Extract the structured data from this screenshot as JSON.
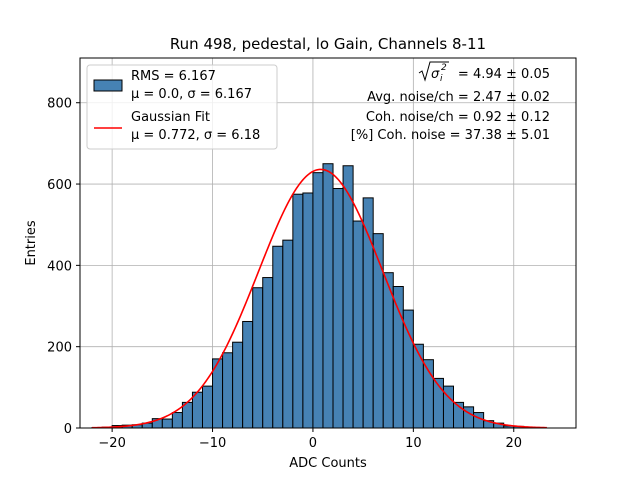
{
  "chart_data": {
    "type": "bar",
    "title": "Run 498, pedestal, lo Gain, Channels 8-11",
    "xlabel": "ADC Counts",
    "ylabel": "Entries",
    "xlim": [
      -23.2,
      26.2
    ],
    "ylim": [
      0,
      910
    ],
    "xticks": [
      -20,
      -10,
      0,
      10,
      20
    ],
    "xtick_labels": [
      "−20",
      "−10",
      "0",
      "10",
      "20"
    ],
    "yticks": [
      0,
      200,
      400,
      600,
      800
    ],
    "ytick_labels": [
      "0",
      "200",
      "400",
      "600",
      "800"
    ],
    "grid": true,
    "legend_position": "top-left",
    "colors": {
      "bar_fill": "#4682b4",
      "bar_edge": "#000000",
      "fit_line": "#ff0000",
      "grid": "#b0b0b0"
    },
    "histogram": {
      "bin_width": 1,
      "bin_starts": [
        -22,
        -21,
        -20,
        -19,
        -18,
        -17,
        -16,
        -15,
        -14,
        -13,
        -12,
        -11,
        -10,
        -9,
        -8,
        -7,
        -6,
        -5,
        -4,
        -3,
        -2,
        -1,
        0,
        1,
        2,
        3,
        4,
        5,
        6,
        7,
        8,
        9,
        10,
        11,
        12,
        13,
        14,
        15,
        16,
        17,
        18,
        19,
        20,
        21,
        22
      ],
      "counts": [
        1,
        2,
        6,
        7,
        8,
        12,
        23,
        22,
        38,
        63,
        88,
        103,
        170,
        185,
        211,
        262,
        345,
        370,
        447,
        462,
        575,
        578,
        628,
        650,
        589,
        645,
        509,
        566,
        478,
        382,
        348,
        290,
        206,
        168,
        122,
        103,
        63,
        52,
        38,
        18,
        12,
        5,
        4,
        2,
        1
      ]
    },
    "fit": {
      "type": "gaussian",
      "mu": 0.772,
      "sigma": 6.18,
      "amplitude": 636,
      "x_range": [
        -22,
        23.3
      ]
    },
    "legend": [
      {
        "kind": "patch",
        "line1": "RMS = 6.167",
        "line2": "μ = 0.0, σ = 6.167"
      },
      {
        "kind": "line",
        "line1": "Gaussian Fit",
        "line2": "μ = 0.772, σ = 6.18"
      }
    ],
    "annotations": {
      "sqrt_value": " = 4.94 ± 0.05",
      "avg_noise": "Avg. noise/ch = 2.47 ± 0.02",
      "coh_noise": "Coh. noise/ch = 0.92 ± 0.12",
      "coh_noise_pct": "[%] Coh. noise = 37.38 ± 5.01"
    }
  }
}
